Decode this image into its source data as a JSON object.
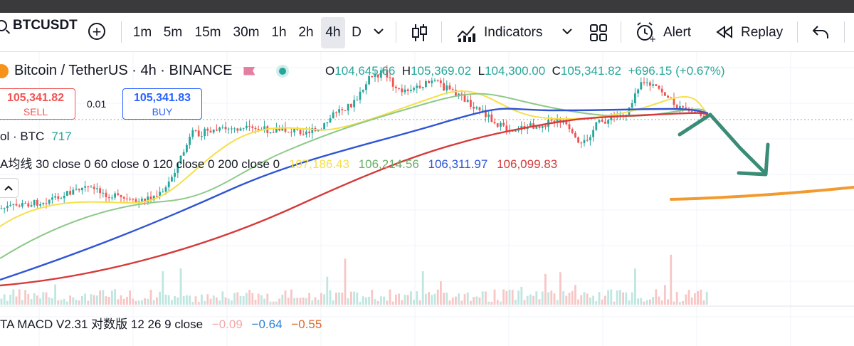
{
  "toolbar": {
    "symbol": "BTCUSDT",
    "timeframes": [
      "1m",
      "5m",
      "15m",
      "30m",
      "1h",
      "2h",
      "4h",
      "D"
    ],
    "active_timeframe": "4h",
    "indicators_label": "Indicators",
    "alert_label": "Alert",
    "replay_label": "Replay",
    "icons": [
      "search-icon",
      "plus-circle-icon",
      "chevron-down-icon",
      "candle-type-icon",
      "indicators-icon",
      "layout-grid-icon",
      "alarm-icon",
      "replay-icon",
      "undo-icon"
    ]
  },
  "legend": {
    "title": "Bitcoin / TetherUS · 4h · BINANCE",
    "ohlc": {
      "o_label": "O",
      "o": "104,645.66",
      "h_label": "H",
      "h": "105,369.02",
      "l_label": "L",
      "l": "104,300.00",
      "c_label": "C",
      "c": "105,341.82",
      "change": "+696.15 (+0.67%)"
    },
    "sell_price": "105,341.82",
    "sell_label": "SELL",
    "spread": "0.01",
    "buy_price": "105,341.83",
    "buy_label": "BUY",
    "volume_label": "ol · BTC",
    "volume_value": "717",
    "ma_label": "A均线 30 close 0 60 close 0 120 close 0 200 close 0",
    "ma_values": [
      "107,186.43",
      "106,214.56",
      "106,311.97",
      "106,099.83"
    ],
    "macd_label": "TA MACD V2.31 对数版 12 26 9 close",
    "macd_values": [
      "−0.09",
      "−0.64",
      "−0.55"
    ]
  },
  "colors": {
    "up": "#26a69a",
    "down": "#ef5350",
    "ma30": "#f5e04a",
    "ma60": "#8fc98a",
    "ma120": "#2f55d4",
    "ma200": "#d63a3a",
    "arrow": "#3a8c76",
    "target_line": "#f29a2e"
  }
}
